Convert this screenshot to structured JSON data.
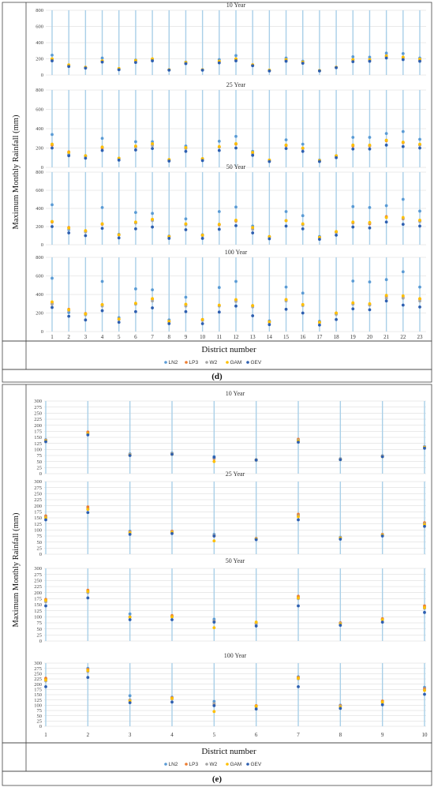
{
  "palette": {
    "LN2": "#5a9bd5",
    "LP3": "#ed7d31",
    "W2": "#a5a5a5",
    "GAM": "#ffc000",
    "GEV": "#2e5fb0",
    "vline": "#a9cfe8",
    "grid": "#d6d6d6",
    "border": "#444444"
  },
  "chart_data": [
    {
      "type": "scatter",
      "caption": "(d)",
      "ylabel": "Maximum Monthly Rainfall (mm)",
      "xlabel": "District number",
      "districts": [
        "1",
        "2",
        "3",
        "4",
        "5",
        "6",
        "7",
        "8",
        "9",
        "10",
        "11",
        "12",
        "13",
        "14",
        "15",
        "16",
        "17",
        "18",
        "19",
        "20",
        "21",
        "22",
        "23"
      ],
      "ylim": [
        0,
        800
      ],
      "yticks": [
        0,
        200,
        400,
        600,
        800
      ],
      "legend": [
        "LN2",
        "LP3",
        "W2",
        "GAM",
        "GEV"
      ],
      "legend_position": "bottom-center",
      "panels": [
        {
          "title": "10 Year",
          "series": {
            "LN2": [
              245,
              110,
              90,
              210,
              70,
              185,
              190,
              65,
              160,
              65,
              190,
              240,
              120,
              60,
              210,
              170,
              55,
              95,
              225,
              220,
              270,
              265,
              210
            ],
            "LP3": [
              190,
              120,
              95,
              170,
              75,
              175,
              195,
              65,
              150,
              65,
              165,
              190,
              125,
              55,
              185,
              155,
              55,
              95,
              185,
              185,
              225,
              210,
              185
            ],
            "W2": [
              195,
              120,
              95,
              175,
              75,
              175,
              190,
              65,
              155,
              65,
              170,
              200,
              120,
              55,
              190,
              160,
              55,
              95,
              190,
              190,
              240,
              220,
              195
            ],
            "GAM": [
              200,
              125,
              95,
              175,
              80,
              180,
              200,
              65,
              155,
              65,
              170,
              200,
              125,
              60,
              190,
              160,
              55,
              95,
              190,
              190,
              235,
              220,
              195
            ],
            "GEV": [
              175,
              105,
              85,
              160,
              65,
              155,
              175,
              60,
              140,
              60,
              150,
              175,
              115,
              50,
              170,
              145,
              50,
              90,
              165,
              170,
              210,
              190,
              170
            ]
          }
        },
        {
          "title": "25 Year",
          "series": {
            "LN2": [
              340,
              130,
              120,
              300,
              95,
              265,
              265,
              80,
              220,
              90,
              270,
              320,
              165,
              75,
              285,
              240,
              75,
              120,
              310,
              310,
              350,
              370,
              290
            ],
            "LP3": [
              230,
              160,
              115,
              200,
              90,
              215,
              240,
              75,
              200,
              85,
              210,
              240,
              150,
              70,
              225,
              195,
              70,
              115,
              220,
              220,
              275,
              255,
              235
            ],
            "W2": [
              240,
              150,
              115,
              210,
              90,
              210,
              225,
              75,
              195,
              85,
              210,
              245,
              145,
              70,
              230,
              195,
              70,
              115,
              230,
              225,
              280,
              260,
              230
            ],
            "GAM": [
              240,
              155,
              120,
              210,
              95,
              220,
              245,
              80,
              205,
              90,
              215,
              245,
              155,
              75,
              230,
              200,
              70,
              120,
              230,
              230,
              280,
              260,
              240
            ],
            "GEV": [
              200,
              120,
              95,
              175,
              75,
              180,
              195,
              65,
              165,
              70,
              175,
              200,
              125,
              60,
              195,
              165,
              60,
              100,
              190,
              190,
              230,
              215,
              200
            ]
          }
        },
        {
          "title": "50 Year",
          "series": {
            "LN2": [
              440,
              165,
              145,
              410,
              115,
              355,
              345,
              95,
              285,
              110,
              365,
              415,
              205,
              90,
              365,
              320,
              90,
              140,
              420,
              410,
              430,
              500,
              370
            ],
            "LP3": [
              250,
              190,
              150,
              225,
              110,
              240,
              275,
              90,
              225,
              105,
              220,
              260,
              180,
              85,
              265,
              225,
              80,
              140,
              240,
              230,
              310,
              285,
              265
            ],
            "W2": [
              255,
              175,
              140,
              230,
              105,
              240,
              265,
              85,
              220,
              100,
              225,
              265,
              170,
              85,
              265,
              220,
              80,
              135,
              245,
              240,
              300,
              290,
              255
            ],
            "GAM": [
              255,
              185,
              155,
              230,
              110,
              250,
              280,
              90,
              230,
              105,
              225,
              270,
              190,
              90,
              265,
              230,
              80,
              145,
              250,
              245,
              300,
              300,
              270
            ],
            "GEV": [
              200,
              130,
              100,
              180,
              75,
              175,
              195,
              70,
              165,
              70,
              170,
              210,
              130,
              65,
              205,
              175,
              60,
              105,
              195,
              185,
              250,
              225,
              205
            ]
          }
        },
        {
          "title": "100 Year",
          "series": {
            "LN2": [
              575,
              205,
              185,
              540,
              150,
              460,
              450,
              125,
              370,
              130,
              475,
              540,
              275,
              115,
              480,
              415,
              110,
              190,
              545,
              535,
              560,
              645,
              480
            ],
            "LP3": [
              305,
              240,
              195,
              290,
              135,
              300,
              350,
              110,
              290,
              130,
              280,
              340,
              280,
              105,
              345,
              290,
              100,
              200,
              300,
              290,
              380,
              370,
              350
            ],
            "W2": [
              295,
              225,
              180,
              275,
              130,
              295,
              330,
              105,
              275,
              120,
              275,
              325,
              265,
              100,
              330,
              280,
              95,
              185,
              295,
              285,
              360,
              360,
              330
            ],
            "GAM": [
              320,
              235,
              190,
              290,
              135,
              305,
              355,
              110,
              295,
              130,
              285,
              345,
              280,
              105,
              345,
              290,
              100,
              200,
              310,
              300,
              390,
              385,
              355
            ],
            "GEV": [
              260,
              165,
              125,
              225,
              100,
              215,
              255,
              85,
              215,
              85,
              210,
              275,
              170,
              75,
              240,
              200,
              70,
              130,
              245,
              235,
              330,
              285,
              265
            ]
          }
        }
      ]
    },
    {
      "type": "scatter",
      "caption": "(e)",
      "ylabel": "Maximum Monthly Rainfall (mm)",
      "xlabel": "District number",
      "districts": [
        "1",
        "2",
        "3",
        "4",
        "5",
        "6",
        "7",
        "8",
        "9",
        "10"
      ],
      "ylim": [
        0,
        300
      ],
      "yticks": [
        0,
        25,
        50,
        75,
        100,
        125,
        150,
        175,
        200,
        225,
        250,
        275,
        300
      ],
      "legend": [
        "LN2",
        "LP3",
        "W2",
        "GAM",
        "GEV"
      ],
      "legend_position": "bottom-center",
      "panels": [
        {
          "title": "10 Year",
          "series": {
            "LN2": [
              140,
              168,
              82,
              85,
              70,
              58,
              140,
              62,
              74,
              112
            ],
            "LP3": [
              138,
              172,
              78,
              82,
              62,
              57,
              142,
              60,
              72,
              110
            ],
            "W2": [
              137,
              165,
              80,
              83,
              65,
              58,
              138,
              61,
              72,
              110
            ],
            "GAM": [
              135,
              165,
              76,
              80,
              50,
              56,
              135,
              58,
              70,
              108
            ],
            "GEV": [
              132,
              160,
              75,
              80,
              68,
              56,
              130,
              58,
              70,
              105
            ]
          }
        },
        {
          "title": "25 Year",
          "series": {
            "LN2": [
              155,
              188,
              95,
              92,
              82,
              65,
              160,
              70,
              82,
              128
            ],
            "LP3": [
              158,
              195,
              92,
              95,
              75,
              65,
              165,
              68,
              82,
              130
            ],
            "W2": [
              152,
              185,
              90,
              92,
              78,
              64,
              158,
              68,
              80,
              125
            ],
            "GAM": [
              150,
              185,
              88,
              90,
              55,
              62,
              155,
              66,
              78,
              122
            ],
            "GEV": [
              142,
              172,
              82,
              85,
              75,
              60,
              142,
              62,
              75,
              115
            ]
          }
        },
        {
          "title": "50 Year",
          "series": {
            "LN2": [
              165,
              205,
              112,
              102,
              90,
              72,
              180,
              75,
              90,
              140
            ],
            "LP3": [
              172,
              210,
              100,
              105,
              82,
              72,
              185,
              75,
              92,
              145
            ],
            "W2": [
              162,
              200,
              100,
              100,
              82,
              70,
              175,
              72,
              88,
              135
            ],
            "GAM": [
              168,
              205,
              98,
              100,
              55,
              78,
              178,
              70,
              88,
              138
            ],
            "GEV": [
              145,
              178,
              88,
              88,
              78,
              62,
              145,
              65,
              78,
              118
            ]
          }
        },
        {
          "title": "100 Year",
          "series": {
            "LN2": [
              225,
              275,
              145,
              138,
              118,
              95,
              235,
              100,
              118,
              185
            ],
            "LP3": [
              228,
              270,
              125,
              135,
              105,
              98,
              232,
              98,
              120,
              178
            ],
            "W2": [
              215,
              260,
              125,
              130,
              108,
              92,
              225,
              95,
              112,
              172
            ],
            "GAM": [
              220,
              265,
              120,
              132,
              70,
              95,
              228,
              92,
              115,
              170
            ],
            "GEV": [
              188,
              232,
              112,
              115,
              98,
              82,
              188,
              85,
              102,
              152
            ]
          }
        }
      ]
    }
  ]
}
